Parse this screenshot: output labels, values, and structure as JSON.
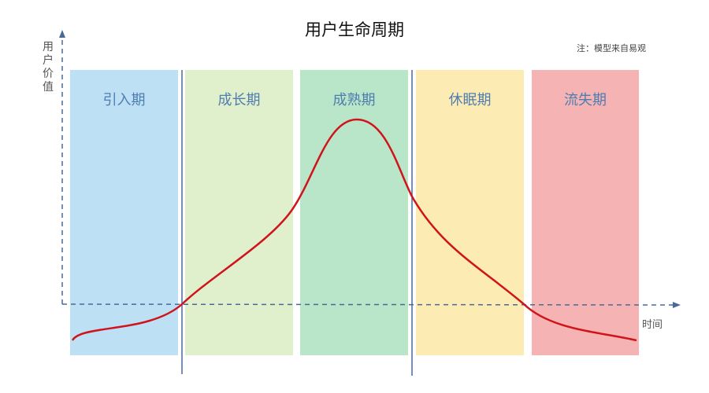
{
  "title": "用户生命周期",
  "note": "注：模型来自易观",
  "y_axis_label": "用户价值",
  "x_axis_label": "时间",
  "stages": [
    {
      "label": "引入期",
      "color": "#bde0f5"
    },
    {
      "label": "成长期",
      "color": "#e1f0cc"
    },
    {
      "label": "成熟期",
      "color": "#b9e6c9"
    },
    {
      "label": "休眠期",
      "color": "#fcecb4"
    },
    {
      "label": "流失期",
      "color": "#f5b3b3"
    }
  ],
  "curve_color": "#d0141c",
  "axis_color": "#4a6a96"
}
